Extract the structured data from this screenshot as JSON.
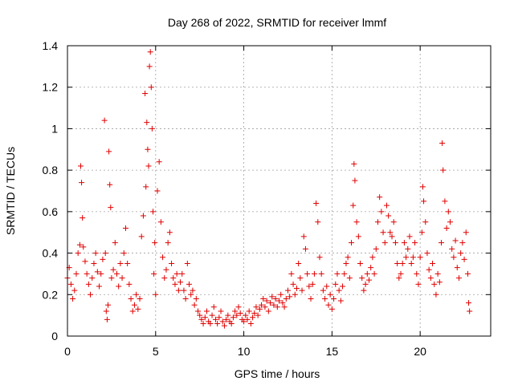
{
  "chart_data": {
    "type": "scatter",
    "title": "Day 268 of 2022, SRMTID for receiver lmmf",
    "xlabel": "GPS time / hours",
    "ylabel": "SRMTID / TECUs",
    "xlim": [
      0,
      24
    ],
    "ylim": [
      0,
      1.4
    ],
    "x_ticks": [
      0,
      5,
      10,
      15,
      20
    ],
    "x_tick_labels": [
      "0",
      "5",
      "10",
      "15",
      "20"
    ],
    "y_ticks": [
      0,
      0.2,
      0.4,
      0.6,
      0.8,
      1.0,
      1.2,
      1.4
    ],
    "y_tick_labels": [
      "0",
      "0.2",
      "0.4",
      "0.6",
      "0.8",
      "1",
      "1.2",
      "1.4"
    ],
    "grid": true,
    "marker": "+",
    "color": "#e00000",
    "series": [
      {
        "name": "SRMTID",
        "points": [
          [
            0.0,
            0.28
          ],
          [
            0.1,
            0.33
          ],
          [
            0.2,
            0.25
          ],
          [
            0.3,
            0.18
          ],
          [
            0.4,
            0.22
          ],
          [
            0.5,
            0.3
          ],
          [
            0.6,
            0.4
          ],
          [
            0.7,
            0.44
          ],
          [
            0.75,
            0.82
          ],
          [
            0.8,
            0.74
          ],
          [
            0.85,
            0.57
          ],
          [
            0.9,
            0.43
          ],
          [
            1.0,
            0.36
          ],
          [
            1.1,
            0.3
          ],
          [
            1.2,
            0.25
          ],
          [
            1.3,
            0.2
          ],
          [
            1.4,
            0.28
          ],
          [
            1.5,
            0.35
          ],
          [
            1.6,
            0.4
          ],
          [
            1.7,
            0.31
          ],
          [
            1.8,
            0.24
          ],
          [
            1.9,
            0.3
          ],
          [
            2.0,
            0.37
          ],
          [
            2.1,
            1.04
          ],
          [
            2.15,
            0.4
          ],
          [
            2.2,
            0.12
          ],
          [
            2.25,
            0.08
          ],
          [
            2.3,
            0.15
          ],
          [
            2.35,
            0.89
          ],
          [
            2.4,
            0.73
          ],
          [
            2.45,
            0.62
          ],
          [
            2.5,
            0.28
          ],
          [
            2.6,
            0.32
          ],
          [
            2.7,
            0.45
          ],
          [
            2.8,
            0.3
          ],
          [
            2.9,
            0.24
          ],
          [
            3.0,
            0.35
          ],
          [
            3.1,
            0.28
          ],
          [
            3.2,
            0.4
          ],
          [
            3.3,
            0.52
          ],
          [
            3.4,
            0.35
          ],
          [
            3.5,
            0.25
          ],
          [
            3.6,
            0.18
          ],
          [
            3.7,
            0.12
          ],
          [
            3.8,
            0.15
          ],
          [
            3.9,
            0.2
          ],
          [
            4.0,
            0.13
          ],
          [
            4.1,
            0.18
          ],
          [
            4.2,
            0.48
          ],
          [
            4.3,
            0.58
          ],
          [
            4.4,
            1.17
          ],
          [
            4.45,
            0.72
          ],
          [
            4.5,
            1.03
          ],
          [
            4.55,
            0.9
          ],
          [
            4.6,
            0.82
          ],
          [
            4.65,
            1.3
          ],
          [
            4.7,
            1.37
          ],
          [
            4.75,
            1.2
          ],
          [
            4.8,
            1.0
          ],
          [
            4.85,
            0.6
          ],
          [
            4.9,
            0.3
          ],
          [
            4.95,
            0.45
          ],
          [
            5.0,
            0.2
          ],
          [
            5.1,
            0.7
          ],
          [
            5.2,
            0.84
          ],
          [
            5.3,
            0.55
          ],
          [
            5.4,
            0.38
          ],
          [
            5.5,
            0.28
          ],
          [
            5.6,
            0.32
          ],
          [
            5.7,
            0.45
          ],
          [
            5.8,
            0.5
          ],
          [
            5.9,
            0.35
          ],
          [
            6.0,
            0.28
          ],
          [
            6.1,
            0.25
          ],
          [
            6.2,
            0.3
          ],
          [
            6.3,
            0.22
          ],
          [
            6.4,
            0.26
          ],
          [
            6.5,
            0.3
          ],
          [
            6.6,
            0.22
          ],
          [
            6.7,
            0.18
          ],
          [
            6.8,
            0.35
          ],
          [
            6.9,
            0.25
          ],
          [
            7.0,
            0.2
          ],
          [
            7.1,
            0.22
          ],
          [
            7.2,
            0.15
          ],
          [
            7.3,
            0.18
          ],
          [
            7.4,
            0.12
          ],
          [
            7.5,
            0.1
          ],
          [
            7.6,
            0.08
          ],
          [
            7.7,
            0.06
          ],
          [
            7.8,
            0.09
          ],
          [
            7.9,
            0.12
          ],
          [
            8.0,
            0.07
          ],
          [
            8.1,
            0.06
          ],
          [
            8.2,
            0.1
          ],
          [
            8.3,
            0.14
          ],
          [
            8.4,
            0.08
          ],
          [
            8.5,
            0.06
          ],
          [
            8.6,
            0.09
          ],
          [
            8.7,
            0.12
          ],
          [
            8.8,
            0.07
          ],
          [
            8.9,
            0.05
          ],
          [
            9.0,
            0.08
          ],
          [
            9.1,
            0.1
          ],
          [
            9.2,
            0.07
          ],
          [
            9.3,
            0.06
          ],
          [
            9.4,
            0.09
          ],
          [
            9.5,
            0.12
          ],
          [
            9.6,
            0.1
          ],
          [
            9.7,
            0.14
          ],
          [
            9.8,
            0.11
          ],
          [
            9.9,
            0.08
          ],
          [
            10.0,
            0.07
          ],
          [
            10.1,
            0.1
          ],
          [
            10.2,
            0.08
          ],
          [
            10.3,
            0.12
          ],
          [
            10.4,
            0.06
          ],
          [
            10.5,
            0.09
          ],
          [
            10.6,
            0.11
          ],
          [
            10.7,
            0.14
          ],
          [
            10.8,
            0.1
          ],
          [
            10.9,
            0.13
          ],
          [
            11.0,
            0.15
          ],
          [
            11.1,
            0.18
          ],
          [
            11.2,
            0.14
          ],
          [
            11.3,
            0.17
          ],
          [
            11.4,
            0.12
          ],
          [
            11.5,
            0.16
          ],
          [
            11.6,
            0.19
          ],
          [
            11.7,
            0.15
          ],
          [
            11.8,
            0.18
          ],
          [
            11.9,
            0.14
          ],
          [
            12.0,
            0.17
          ],
          [
            12.1,
            0.2
          ],
          [
            12.2,
            0.16
          ],
          [
            12.3,
            0.14
          ],
          [
            12.4,
            0.18
          ],
          [
            12.5,
            0.22
          ],
          [
            12.6,
            0.19
          ],
          [
            12.7,
            0.3
          ],
          [
            12.8,
            0.25
          ],
          [
            12.9,
            0.2
          ],
          [
            13.0,
            0.23
          ],
          [
            13.1,
            0.35
          ],
          [
            13.2,
            0.28
          ],
          [
            13.3,
            0.22
          ],
          [
            13.4,
            0.48
          ],
          [
            13.5,
            0.42
          ],
          [
            13.6,
            0.3
          ],
          [
            13.7,
            0.24
          ],
          [
            13.8,
            0.18
          ],
          [
            13.9,
            0.25
          ],
          [
            14.0,
            0.3
          ],
          [
            14.1,
            0.64
          ],
          [
            14.2,
            0.55
          ],
          [
            14.3,
            0.38
          ],
          [
            14.4,
            0.3
          ],
          [
            14.5,
            0.22
          ],
          [
            14.6,
            0.18
          ],
          [
            14.7,
            0.24
          ],
          [
            14.8,
            0.15
          ],
          [
            14.9,
            0.2
          ],
          [
            15.0,
            0.13
          ],
          [
            15.1,
            0.18
          ],
          [
            15.2,
            0.25
          ],
          [
            15.3,
            0.3
          ],
          [
            15.4,
            0.22
          ],
          [
            15.5,
            0.17
          ],
          [
            15.6,
            0.24
          ],
          [
            15.7,
            0.3
          ],
          [
            15.8,
            0.35
          ],
          [
            15.9,
            0.38
          ],
          [
            16.0,
            0.28
          ],
          [
            16.1,
            0.45
          ],
          [
            16.2,
            0.63
          ],
          [
            16.25,
            0.83
          ],
          [
            16.3,
            0.75
          ],
          [
            16.4,
            0.55
          ],
          [
            16.5,
            0.48
          ],
          [
            16.6,
            0.35
          ],
          [
            16.7,
            0.28
          ],
          [
            16.8,
            0.22
          ],
          [
            16.9,
            0.25
          ],
          [
            17.0,
            0.3
          ],
          [
            17.1,
            0.27
          ],
          [
            17.2,
            0.33
          ],
          [
            17.3,
            0.38
          ],
          [
            17.4,
            0.3
          ],
          [
            17.5,
            0.42
          ],
          [
            17.6,
            0.55
          ],
          [
            17.7,
            0.67
          ],
          [
            17.8,
            0.6
          ],
          [
            17.9,
            0.5
          ],
          [
            18.0,
            0.45
          ],
          [
            18.1,
            0.63
          ],
          [
            18.2,
            0.58
          ],
          [
            18.3,
            0.5
          ],
          [
            18.4,
            0.48
          ],
          [
            18.5,
            0.55
          ],
          [
            18.6,
            0.45
          ],
          [
            18.7,
            0.35
          ],
          [
            18.8,
            0.28
          ],
          [
            18.9,
            0.3
          ],
          [
            19.0,
            0.35
          ],
          [
            19.1,
            0.45
          ],
          [
            19.2,
            0.38
          ],
          [
            19.3,
            0.42
          ],
          [
            19.4,
            0.48
          ],
          [
            19.5,
            0.35
          ],
          [
            19.6,
            0.38
          ],
          [
            19.7,
            0.45
          ],
          [
            19.8,
            0.3
          ],
          [
            19.9,
            0.25
          ],
          [
            20.0,
            0.38
          ],
          [
            20.1,
            0.5
          ],
          [
            20.15,
            0.72
          ],
          [
            20.2,
            0.65
          ],
          [
            20.3,
            0.55
          ],
          [
            20.4,
            0.4
          ],
          [
            20.5,
            0.32
          ],
          [
            20.6,
            0.28
          ],
          [
            20.7,
            0.35
          ],
          [
            20.8,
            0.25
          ],
          [
            20.9,
            0.2
          ],
          [
            21.0,
            0.3
          ],
          [
            21.1,
            0.26
          ],
          [
            21.2,
            0.45
          ],
          [
            21.25,
            0.93
          ],
          [
            21.3,
            0.8
          ],
          [
            21.4,
            0.65
          ],
          [
            21.5,
            0.52
          ],
          [
            21.6,
            0.6
          ],
          [
            21.7,
            0.55
          ],
          [
            21.8,
            0.42
          ],
          [
            21.9,
            0.38
          ],
          [
            22.0,
            0.46
          ],
          [
            22.1,
            0.33
          ],
          [
            22.2,
            0.28
          ],
          [
            22.3,
            0.4
          ],
          [
            22.4,
            0.45
          ],
          [
            22.5,
            0.37
          ],
          [
            22.6,
            0.5
          ],
          [
            22.7,
            0.3
          ],
          [
            22.75,
            0.16
          ],
          [
            22.8,
            0.12
          ]
        ]
      }
    ]
  }
}
